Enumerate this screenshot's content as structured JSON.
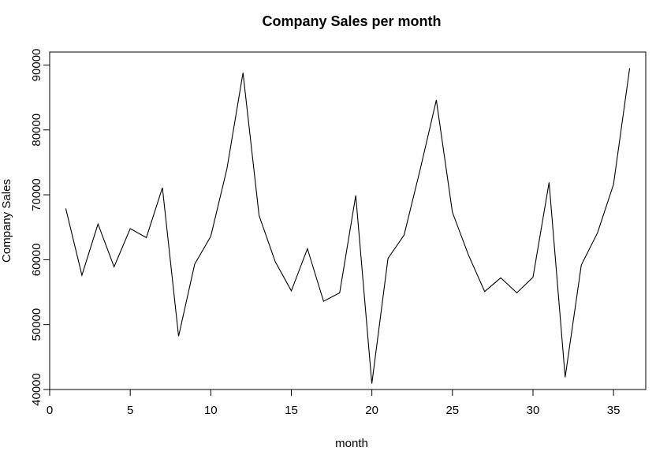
{
  "chart_data": {
    "type": "line",
    "title": "Company Sales per month",
    "xlabel": "month",
    "ylabel": "Company Sales",
    "xlim": [
      0,
      37
    ],
    "ylim": [
      40000,
      92000
    ],
    "xticks": [
      0,
      5,
      10,
      15,
      20,
      25,
      30,
      35
    ],
    "xtick_labels": [
      "0",
      "5",
      "10",
      "15",
      "20",
      "25",
      "30",
      "35"
    ],
    "yticks": [
      40000,
      50000,
      60000,
      70000,
      80000,
      90000
    ],
    "ytick_labels": [
      "40000",
      "50000",
      "60000",
      "70000",
      "80000",
      "90000"
    ],
    "grid": false,
    "legend": "none",
    "line_color": "#000000",
    "series": [
      {
        "x": [
          1,
          2,
          3,
          4,
          5,
          6,
          7,
          8,
          9,
          10,
          11,
          12,
          13,
          14,
          15,
          16,
          17,
          18,
          19,
          20,
          21,
          22,
          23,
          24,
          25,
          26,
          27,
          28,
          29,
          30,
          31,
          32,
          33,
          34,
          35,
          36
        ],
        "values": [
          67900,
          57600,
          65500,
          58900,
          64800,
          63400,
          71100,
          48200,
          59300,
          63600,
          74000,
          88800,
          66800,
          59700,
          55200,
          61700,
          53600,
          54900,
          69900,
          40900,
          60200,
          63800,
          73900,
          84600,
          67300,
          60700,
          55100,
          57200,
          54900,
          57300,
          71900,
          41900,
          59200,
          64100,
          71600,
          89500
        ]
      }
    ]
  }
}
